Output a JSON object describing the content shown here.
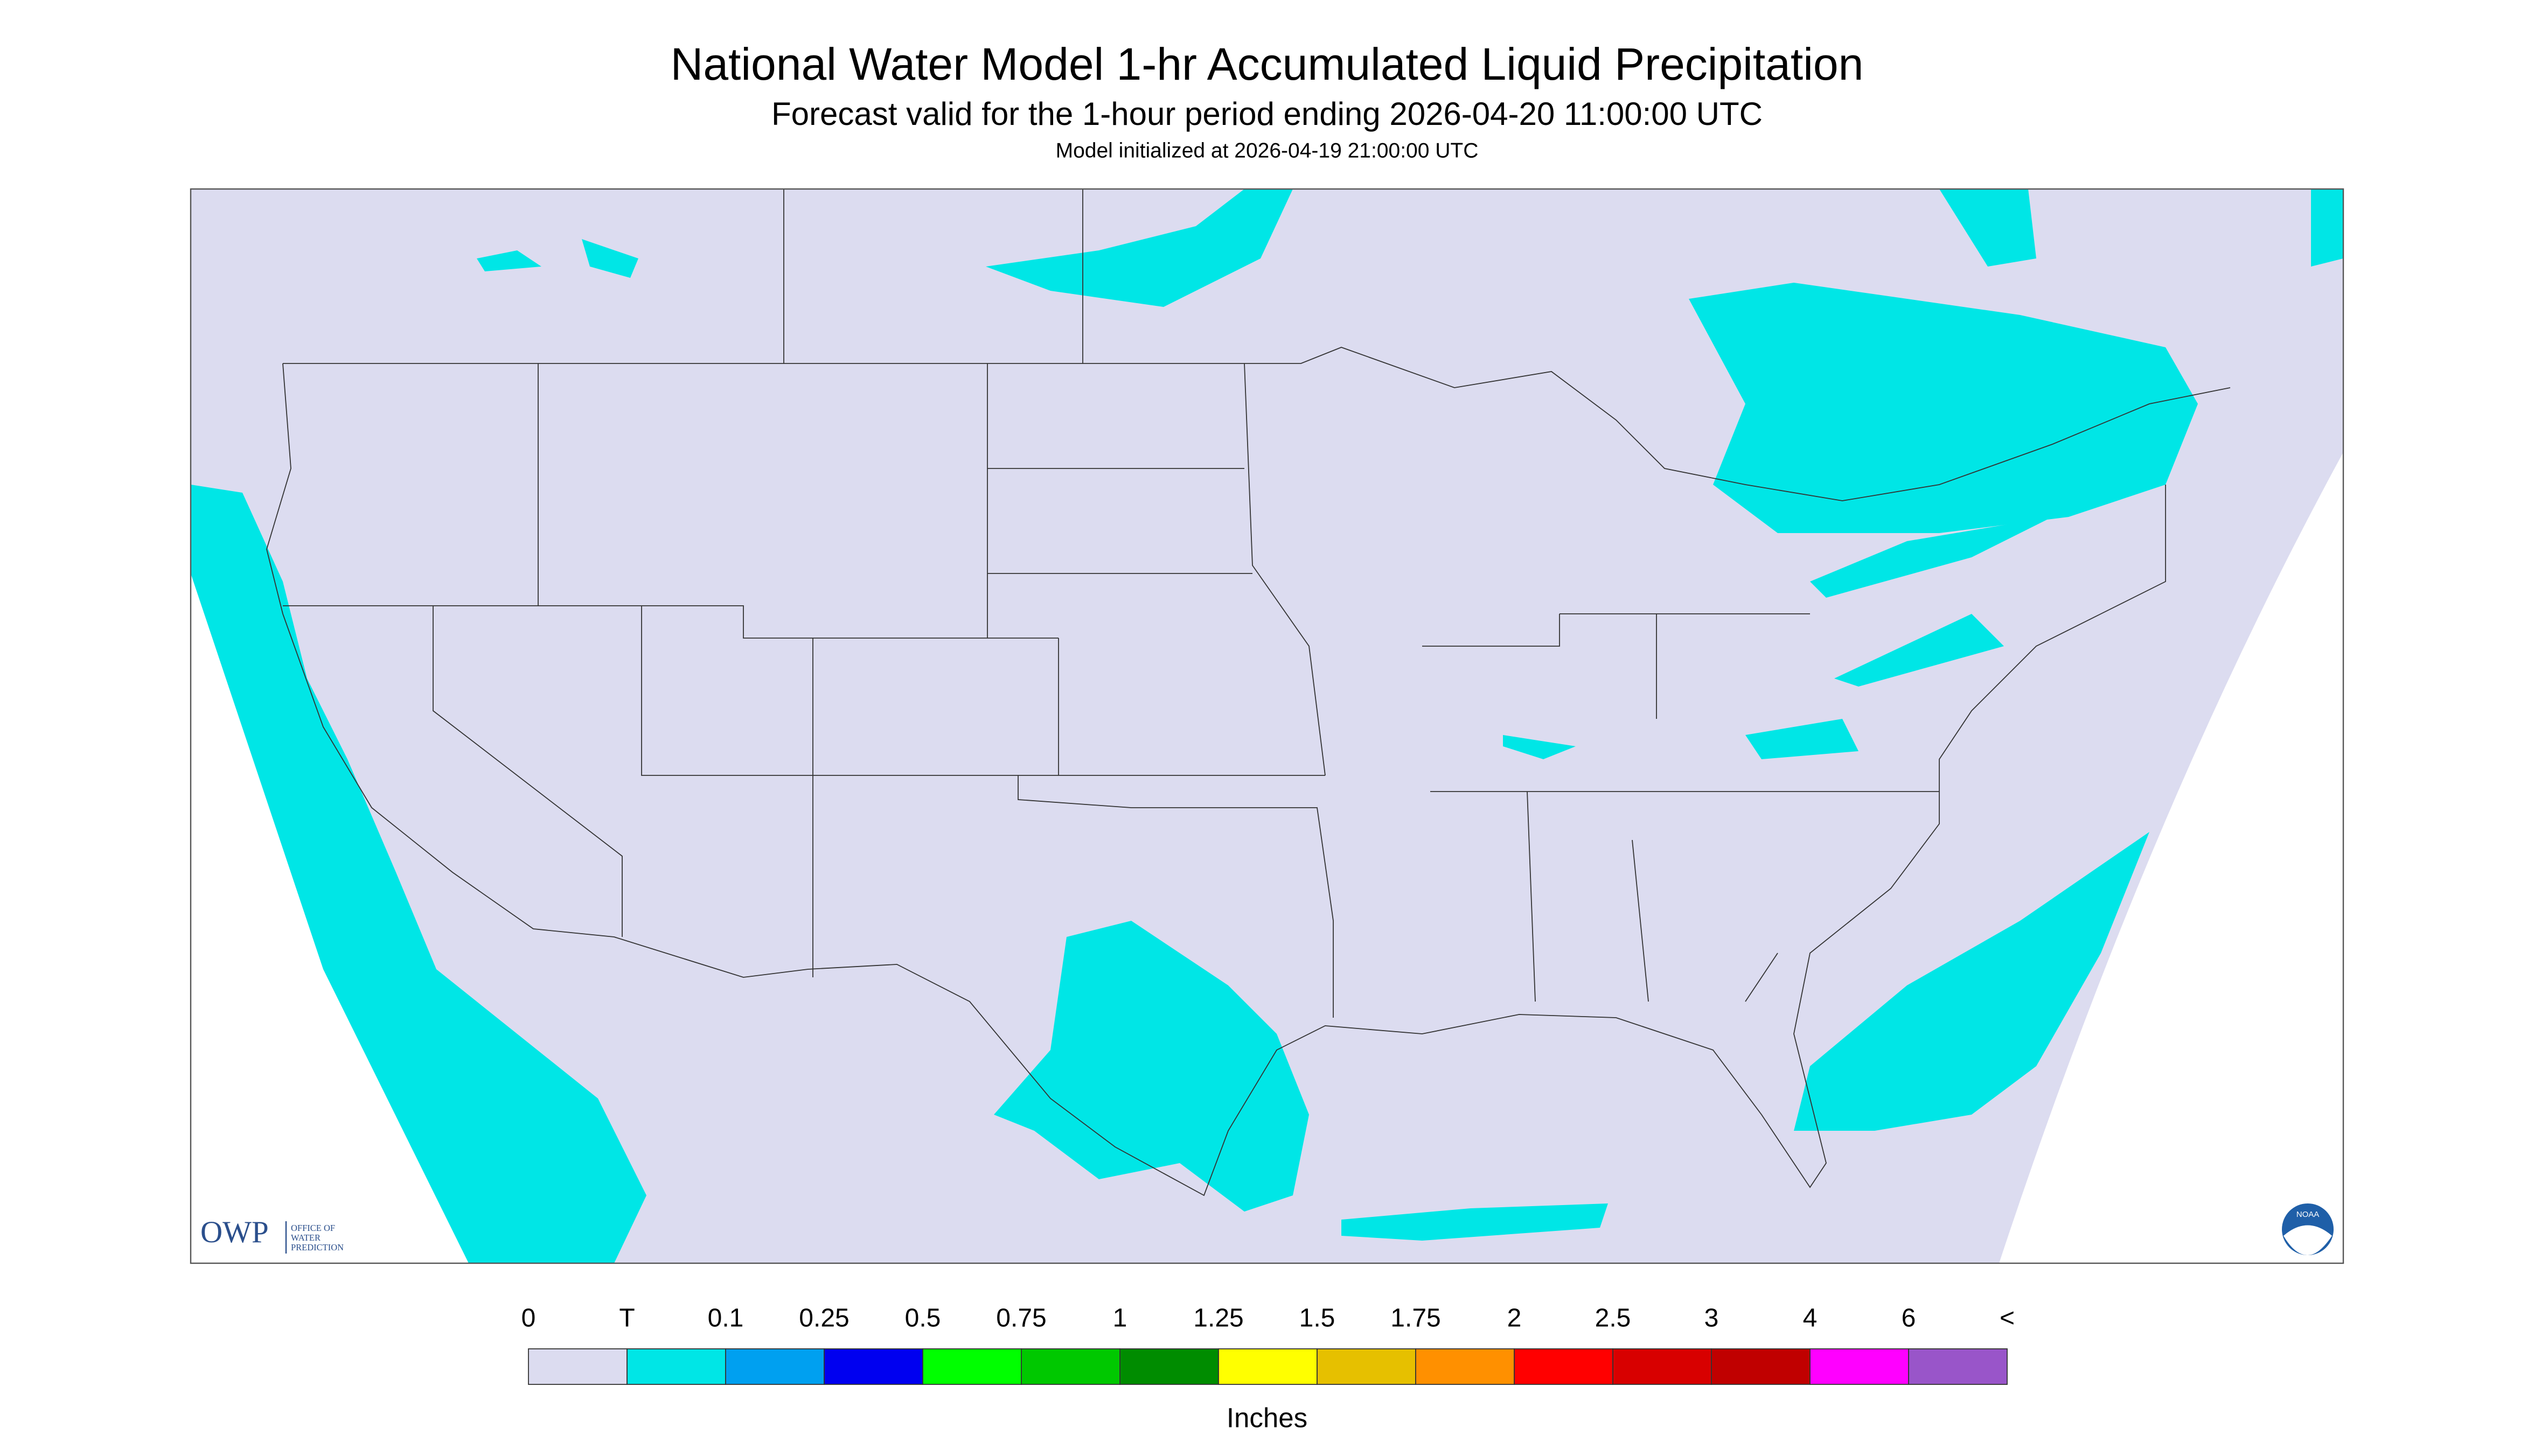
{
  "header": {
    "title": "National Water Model 1-hr Accumulated Liquid Precipitation",
    "subtitle": "Forecast valid for the 1-hour period ending 2026-04-20 11:00:00 UTC",
    "init": "Model initialized at 2026-04-19 21:00:00 UTC"
  },
  "logos": {
    "owp": "OWP",
    "owp_lines": [
      "OFFICE OF",
      "WATER",
      "PREDICTION"
    ],
    "noaa": "NOAA"
  },
  "legend": {
    "labels": [
      "0",
      "T",
      "0.1",
      "0.25",
      "0.5",
      "0.75",
      "1",
      "1.25",
      "1.5",
      "1.75",
      "2",
      "2.5",
      "3",
      "4",
      "6",
      "<"
    ],
    "colors": [
      "#dcdcf0",
      "#00e6e6",
      "#00a0f0",
      "#0000f0",
      "#00ff00",
      "#00c800",
      "#008c00",
      "#ffff00",
      "#e6c000",
      "#ff9000",
      "#ff0000",
      "#d80000",
      "#c00000",
      "#ff00ff",
      "#9955c9"
    ],
    "unit": "Inches"
  }
}
